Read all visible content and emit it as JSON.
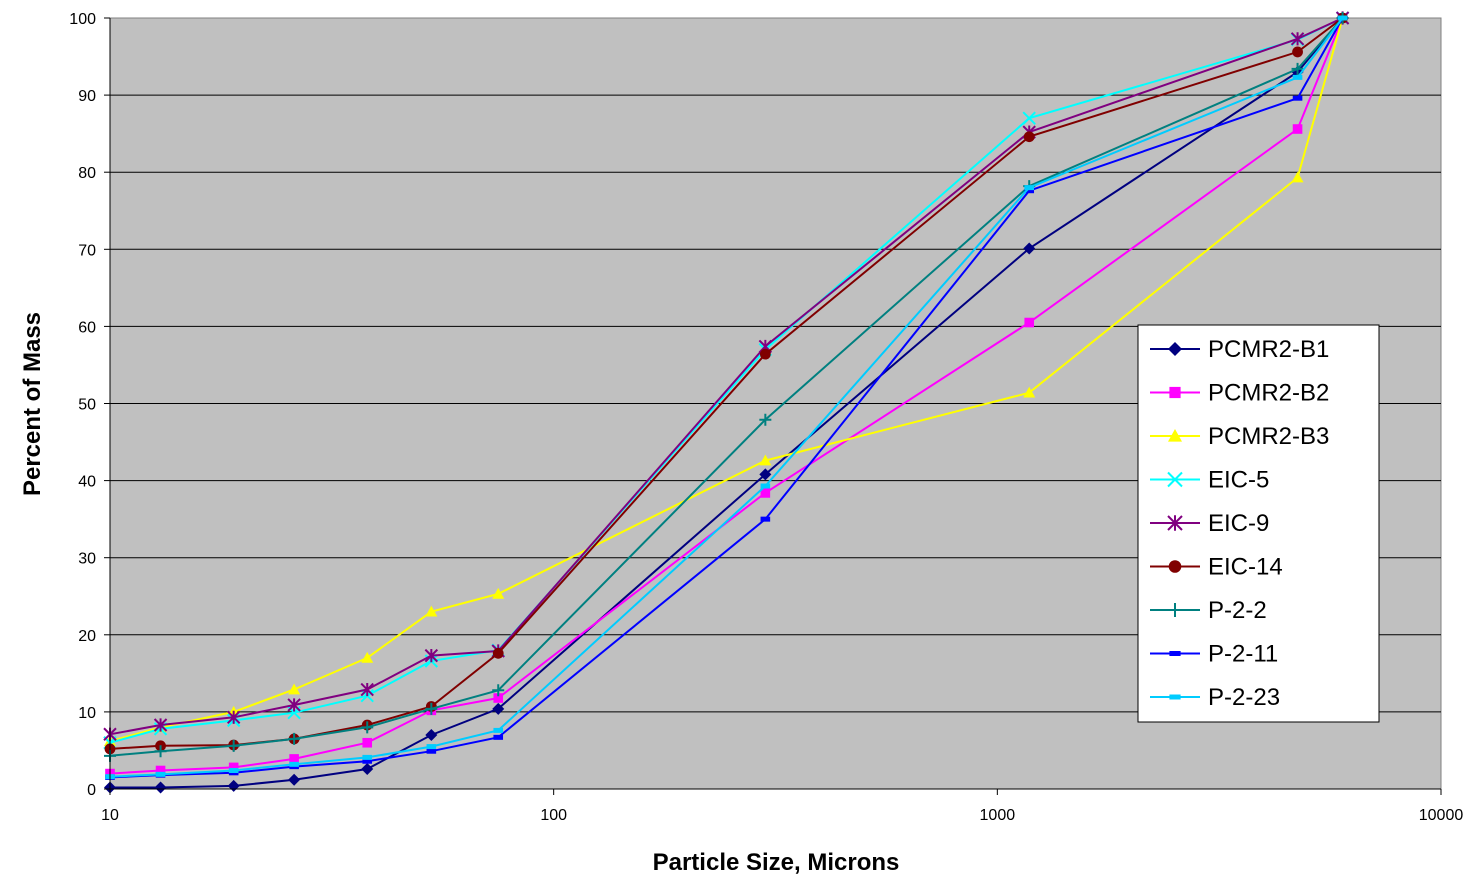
{
  "chart_data": {
    "type": "line",
    "title": "",
    "xlabel": "Particle Size, Microns",
    "ylabel": "Percent of Mass",
    "x_scale": "log",
    "xlim": [
      10,
      10000
    ],
    "ylim": [
      0,
      100
    ],
    "x_ticks": [
      "10",
      "100",
      "1000",
      "10000"
    ],
    "y_ticks": [
      "0",
      "10",
      "20",
      "30",
      "40",
      "50",
      "60",
      "70",
      "80",
      "90",
      "100"
    ],
    "grid": "horizontal",
    "plot_background": "#c0c0c0",
    "legend_position": "right",
    "x": [
      10,
      13,
      19,
      26,
      38,
      53,
      75,
      300,
      1180,
      4750,
      6000
    ],
    "series": [
      {
        "name": "PCMR2-B1",
        "color": "#000080",
        "marker": "diamond",
        "values": [
          0.2,
          0.2,
          0.4,
          1.2,
          2.6,
          7.0,
          10.4,
          40.8,
          70.1,
          93.0,
          100
        ]
      },
      {
        "name": "PCMR2-B2",
        "color": "#ff00ff",
        "marker": "square",
        "values": [
          2.0,
          2.4,
          2.8,
          3.9,
          6.0,
          10.2,
          11.8,
          38.4,
          60.5,
          85.6,
          100
        ]
      },
      {
        "name": "PCMR2-B3",
        "color": "#ffff00",
        "marker": "triangle",
        "values": [
          6.2,
          8.0,
          10.0,
          12.9,
          17.0,
          23.0,
          25.3,
          42.6,
          51.4,
          79.3,
          100
        ]
      },
      {
        "name": "EIC-5",
        "color": "#00ffff",
        "marker": "x",
        "values": [
          6.0,
          7.8,
          8.9,
          9.9,
          12.1,
          16.6,
          18.0,
          57.0,
          87.0,
          97.2,
          100
        ]
      },
      {
        "name": "EIC-9",
        "color": "#800080",
        "marker": "star",
        "values": [
          7.1,
          8.3,
          9.3,
          10.9,
          12.9,
          17.3,
          17.9,
          57.4,
          85.2,
          97.3,
          100
        ]
      },
      {
        "name": "EIC-14",
        "color": "#800000",
        "marker": "circle",
        "values": [
          5.2,
          5.6,
          5.7,
          6.5,
          8.3,
          10.7,
          17.6,
          56.4,
          84.6,
          95.6,
          100
        ]
      },
      {
        "name": "P-2-2",
        "color": "#008080",
        "marker": "plus",
        "values": [
          4.3,
          4.9,
          5.6,
          6.5,
          8.0,
          10.4,
          12.8,
          47.9,
          78.2,
          93.4,
          100
        ]
      },
      {
        "name": "P-2-11",
        "color": "#0000ff",
        "marker": "dash",
        "values": [
          1.5,
          1.8,
          2.1,
          2.9,
          3.6,
          4.9,
          6.7,
          35.0,
          77.6,
          89.6,
          100
        ]
      },
      {
        "name": "P-2-23",
        "color": "#00ccff",
        "marker": "dash",
        "values": [
          1.6,
          1.9,
          2.4,
          3.2,
          4.1,
          5.5,
          7.6,
          39.3,
          78.0,
          92.3,
          100
        ]
      }
    ]
  }
}
